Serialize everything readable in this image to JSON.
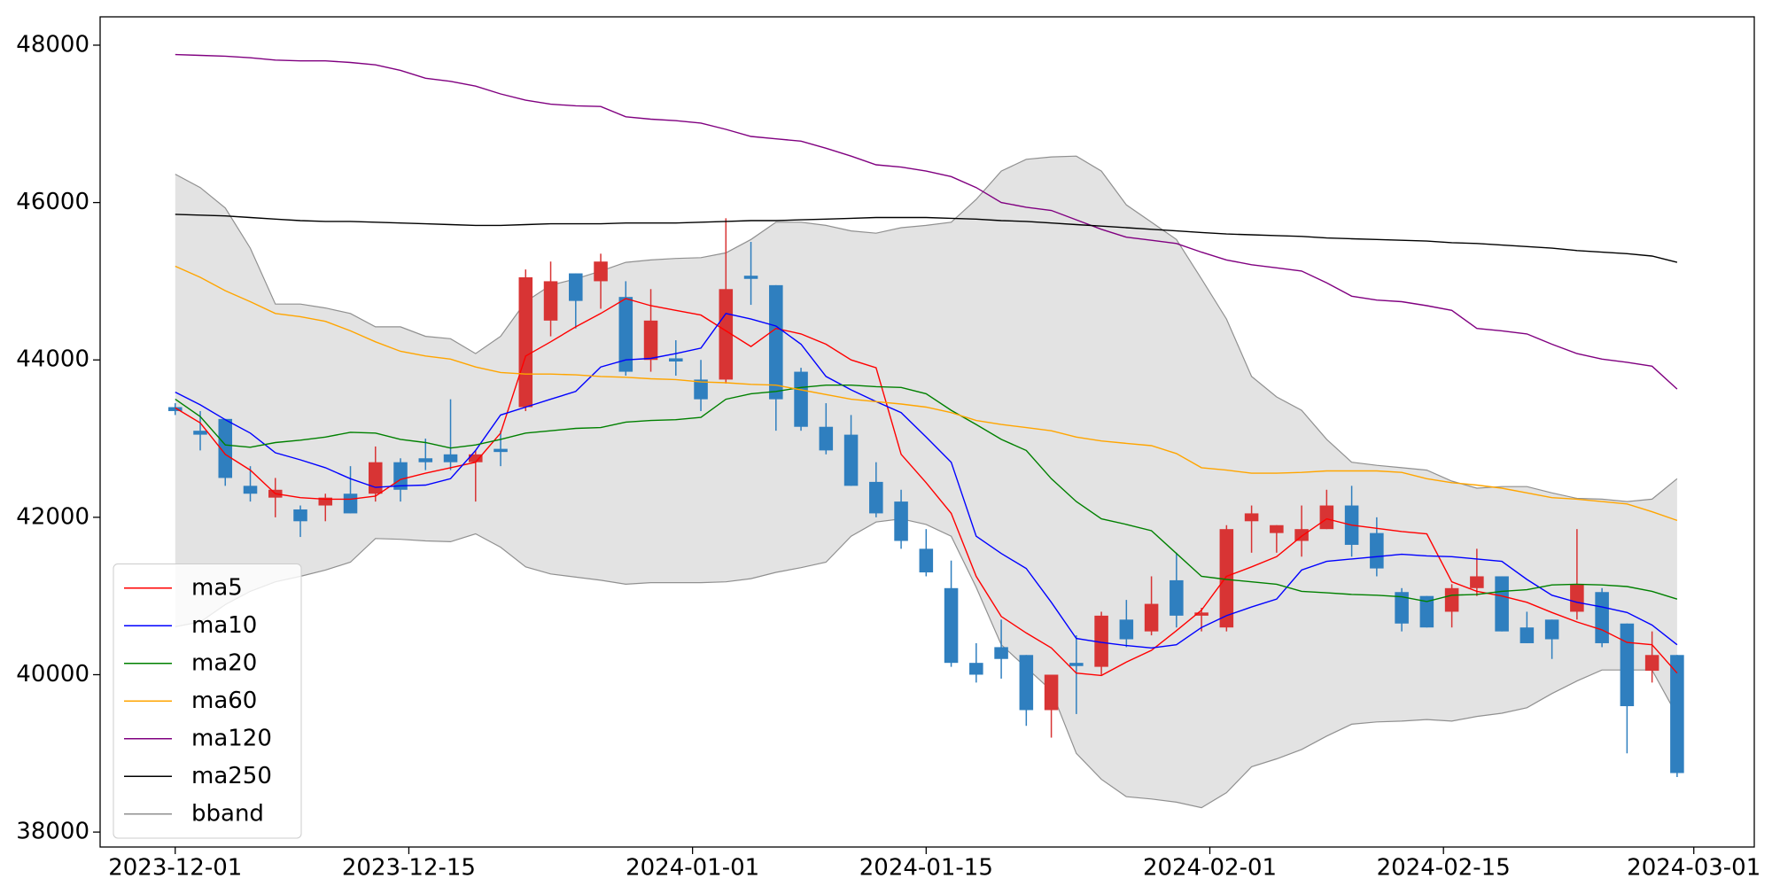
{
  "chart_data": {
    "type": "candlestick",
    "x": [
      "2023-12-01 00:00",
      "2023-12-02 12:00",
      "2023-12-04 00:00",
      "2023-12-05 12:00",
      "2023-12-07 00:00",
      "2023-12-08 12:00",
      "2023-12-10 00:00",
      "2023-12-11 12:00",
      "2023-12-13 00:00",
      "2023-12-14 12:00",
      "2023-12-16 00:00",
      "2023-12-17 12:00",
      "2023-12-19 00:00",
      "2023-12-20 12:00",
      "2023-12-22 00:00",
      "2023-12-23 12:00",
      "2023-12-25 00:00",
      "2023-12-26 12:00",
      "2023-12-28 00:00",
      "2023-12-29 12:00",
      "2023-12-31 00:00",
      "2024-01-01 12:00",
      "2024-01-03 00:00",
      "2024-01-04 12:00",
      "2024-01-06 00:00",
      "2024-01-07 12:00",
      "2024-01-09 00:00",
      "2024-01-10 12:00",
      "2024-01-12 00:00",
      "2024-01-13 12:00",
      "2024-01-15 00:00",
      "2024-01-16 12:00",
      "2024-01-18 00:00",
      "2024-01-19 12:00",
      "2024-01-21 00:00",
      "2024-01-22 12:00",
      "2024-01-24 00:00",
      "2024-01-25 12:00",
      "2024-01-27 00:00",
      "2024-01-28 12:00",
      "2024-01-30 00:00",
      "2024-01-31 12:00",
      "2024-02-02 00:00",
      "2024-02-03 12:00",
      "2024-02-05 00:00",
      "2024-02-06 12:00",
      "2024-02-08 00:00",
      "2024-02-09 12:00",
      "2024-02-11 00:00",
      "2024-02-12 12:00",
      "2024-02-14 00:00",
      "2024-02-15 12:00",
      "2024-02-17 00:00",
      "2024-02-18 12:00",
      "2024-02-20 00:00",
      "2024-02-21 12:00",
      "2024-02-23 00:00",
      "2024-02-24 12:00",
      "2024-02-26 00:00",
      "2024-02-27 12:00",
      "2024-02-29 00:00"
    ],
    "candles": {
      "up_color": "#d83434",
      "down_color": "#2f7fbf",
      "open": [
        43400,
        43100,
        43250,
        42400,
        42250,
        42100,
        42150,
        42300,
        42300,
        42700,
        42750,
        42800,
        42700,
        42870,
        43400,
        44500,
        45100,
        45000,
        44800,
        44000,
        44020,
        43750,
        43750,
        45070,
        44950,
        43850,
        43150,
        43050,
        42450,
        42200,
        41600,
        41100,
        40150,
        40350,
        40250,
        39550,
        40150,
        40100,
        40700,
        40550,
        41200,
        40750,
        40600,
        41950,
        41800,
        41700,
        41850,
        42150,
        41800,
        41050,
        41000,
        40800,
        41100,
        41250,
        40600,
        40700,
        40800,
        41050,
        40650,
        40050,
        40250
      ],
      "high": [
        43450,
        43350,
        43250,
        42650,
        42500,
        42150,
        42300,
        42650,
        42900,
        42750,
        43000,
        43500,
        42850,
        43100,
        45150,
        45250,
        45100,
        45350,
        45000,
        44900,
        44250,
        44000,
        45800,
        45500,
        44950,
        43900,
        43450,
        43300,
        42700,
        42350,
        41850,
        41450,
        40400,
        40700,
        40250,
        40000,
        40500,
        40800,
        40950,
        41250,
        41550,
        40850,
        41900,
        42150,
        41900,
        42150,
        42350,
        42400,
        42000,
        41100,
        41000,
        41150,
        41600,
        41250,
        40800,
        40700,
        41850,
        41100,
        40650,
        40550,
        40250
      ],
      "low": [
        43300,
        42850,
        42400,
        42200,
        42000,
        41750,
        41950,
        42050,
        42200,
        42200,
        42600,
        42600,
        42200,
        42650,
        43350,
        44300,
        44400,
        44650,
        43800,
        43850,
        43800,
        43350,
        43700,
        44700,
        43100,
        43100,
        42800,
        42400,
        42000,
        41600,
        41250,
        40100,
        39900,
        39950,
        39350,
        39200,
        39500,
        40000,
        40350,
        40500,
        40600,
        40550,
        40550,
        41550,
        41550,
        41500,
        41850,
        41500,
        41250,
        40550,
        40600,
        40600,
        41000,
        40550,
        40400,
        40200,
        40700,
        40350,
        39000,
        39900,
        38700
      ],
      "close": [
        43350,
        43050,
        42500,
        42300,
        42350,
        41950,
        42250,
        42050,
        42700,
        42350,
        42700,
        42700,
        42800,
        42830,
        45050,
        45000,
        44750,
        45250,
        43850,
        44500,
        43980,
        43500,
        44900,
        45030,
        43500,
        43150,
        42850,
        42400,
        42050,
        41700,
        41300,
        40150,
        40000,
        40200,
        39550,
        40000,
        40110,
        40750,
        40450,
        40900,
        40750,
        40790,
        41850,
        42050,
        41900,
        41850,
        42150,
        41650,
        41350,
        40650,
        40600,
        41100,
        41250,
        40550,
        40400,
        40450,
        41150,
        40400,
        39600,
        40250,
        38750
      ]
    },
    "series": [
      {
        "name": "ma5",
        "color": "red",
        "values": [
          43390,
          43200,
          42800,
          42600,
          42300,
          42250,
          42230,
          42230,
          42270,
          42480,
          42560,
          42630,
          42700,
          43070,
          44050,
          44230,
          44420,
          44590,
          44780,
          44690,
          44630,
          44570,
          44370,
          44170,
          44400,
          44330,
          44200,
          44000,
          43900,
          42800,
          42440,
          42050,
          41250,
          40740,
          40530,
          40340,
          40020,
          39990,
          40160,
          40310,
          40560,
          40820,
          41250,
          41370,
          41500,
          41760,
          41980,
          41900,
          41860,
          41820,
          41790,
          41180,
          41060,
          41000,
          40920,
          40790,
          40670,
          40570,
          40410,
          40380,
          40020
        ]
      },
      {
        "name": "ma10",
        "color": "blue",
        "values": [
          43590,
          43430,
          43240,
          43070,
          42820,
          42730,
          42630,
          42490,
          42380,
          42400,
          42410,
          42490,
          42850,
          43300,
          43400,
          43500,
          43600,
          43910,
          44000,
          44020,
          44080,
          44150,
          44590,
          44520,
          44430,
          44200,
          43790,
          43620,
          43470,
          43330,
          43020,
          42700,
          41760,
          41540,
          41350,
          40920,
          40460,
          40410,
          40370,
          40340,
          40380,
          40600,
          40750,
          40860,
          40960,
          41330,
          41440,
          41470,
          41500,
          41530,
          41510,
          41500,
          41470,
          41440,
          41210,
          41010,
          40920,
          40860,
          40790,
          40630,
          40380
        ]
      },
      {
        "name": "ma20",
        "color": "green",
        "values": [
          43500,
          43280,
          42920,
          42890,
          42950,
          42980,
          43020,
          43080,
          43070,
          42990,
          42950,
          42880,
          42920,
          42990,
          43070,
          43100,
          43130,
          43140,
          43210,
          43230,
          43240,
          43270,
          43500,
          43570,
          43600,
          43650,
          43680,
          43680,
          43660,
          43650,
          43570,
          43360,
          43180,
          42990,
          42850,
          42490,
          42200,
          41980,
          41910,
          41830,
          41540,
          41250,
          41210,
          41180,
          41150,
          41060,
          41040,
          41020,
          41010,
          40990,
          40930,
          41010,
          41020,
          41060,
          41080,
          41140,
          41150,
          41140,
          41120,
          41060,
          40960
        ]
      },
      {
        "name": "ma60",
        "color": "orange",
        "values": [
          45190,
          45050,
          44880,
          44740,
          44590,
          44550,
          44490,
          44370,
          44230,
          44110,
          44050,
          44010,
          43910,
          43840,
          43820,
          43820,
          43810,
          43790,
          43780,
          43760,
          43750,
          43720,
          43710,
          43690,
          43680,
          43620,
          43560,
          43500,
          43470,
          43440,
          43400,
          43330,
          43230,
          43180,
          43140,
          43100,
          43020,
          42970,
          42940,
          42910,
          42810,
          42630,
          42600,
          42560,
          42560,
          42570,
          42590,
          42590,
          42590,
          42570,
          42490,
          42440,
          42410,
          42370,
          42310,
          42250,
          42230,
          42200,
          42170,
          42070,
          41960
        ]
      },
      {
        "name": "ma120",
        "color": "purple",
        "values": [
          47880,
          47870,
          47860,
          47840,
          47810,
          47800,
          47800,
          47780,
          47750,
          47680,
          47580,
          47540,
          47480,
          47380,
          47300,
          47250,
          47230,
          47220,
          47090,
          47060,
          47040,
          47010,
          46930,
          46840,
          46810,
          46780,
          46690,
          46590,
          46480,
          46450,
          46400,
          46330,
          46190,
          46000,
          45940,
          45900,
          45780,
          45660,
          45560,
          45520,
          45480,
          45370,
          45270,
          45210,
          45170,
          45130,
          44980,
          44810,
          44760,
          44740,
          44690,
          44630,
          44400,
          44370,
          44330,
          44200,
          44080,
          44010,
          43970,
          43920,
          43630
        ]
      },
      {
        "name": "ma250",
        "color": "black",
        "values": [
          45850,
          45840,
          45830,
          45810,
          45790,
          45770,
          45760,
          45760,
          45750,
          45740,
          45730,
          45720,
          45710,
          45710,
          45720,
          45730,
          45730,
          45730,
          45740,
          45740,
          45740,
          45750,
          45760,
          45770,
          45770,
          45780,
          45790,
          45800,
          45810,
          45810,
          45810,
          45800,
          45790,
          45770,
          45760,
          45740,
          45720,
          45700,
          45680,
          45660,
          45640,
          45620,
          45600,
          45590,
          45580,
          45570,
          45550,
          45540,
          45530,
          45520,
          45510,
          45490,
          45480,
          45460,
          45440,
          45420,
          45390,
          45370,
          45350,
          45320,
          45240
        ]
      }
    ],
    "band": {
      "name": "bband",
      "color": "#909090",
      "fill": "#e3e3e3",
      "upper": [
        46360,
        46190,
        45930,
        45420,
        44710,
        44710,
        44660,
        44590,
        44420,
        44420,
        44300,
        44270,
        44080,
        44300,
        44740,
        44950,
        45030,
        45130,
        45240,
        45270,
        45290,
        45300,
        45360,
        45530,
        45750,
        45750,
        45710,
        45640,
        45610,
        45680,
        45710,
        45750,
        46040,
        46400,
        46550,
        46580,
        46590,
        46400,
        45970,
        45750,
        45530,
        45030,
        44520,
        43790,
        43530,
        43360,
        42990,
        42700,
        42660,
        42630,
        42600,
        42460,
        42370,
        42390,
        42390,
        42310,
        42240,
        42230,
        42200,
        42230,
        42490
      ],
      "lower": [
        40610,
        40670,
        40890,
        41060,
        41180,
        41250,
        41330,
        41430,
        41730,
        41720,
        41700,
        41690,
        41790,
        41620,
        41370,
        41280,
        41240,
        41200,
        41150,
        41170,
        41170,
        41170,
        41180,
        41220,
        41300,
        41360,
        41430,
        41760,
        41940,
        41980,
        41910,
        41760,
        41110,
        40380,
        40090,
        39800,
        39000,
        38670,
        38450,
        38420,
        38380,
        38310,
        38500,
        38830,
        38930,
        39050,
        39220,
        39370,
        39400,
        39410,
        39430,
        39410,
        39470,
        39510,
        39580,
        39760,
        39920,
        40060,
        40060,
        40060,
        39480
      ]
    },
    "xlim": [
      "2023-11-26 12:00",
      "2024-03-04 15:00"
    ],
    "xticks": [
      "2023-12-01",
      "2023-12-15",
      "2024-01-01",
      "2024-01-15",
      "2024-02-01",
      "2024-02-15",
      "2024-03-01"
    ],
    "ylim": [
      37810,
      48360
    ],
    "yticks": [
      38000,
      40000,
      42000,
      44000,
      46000,
      48000
    ],
    "legend": "lower left"
  }
}
